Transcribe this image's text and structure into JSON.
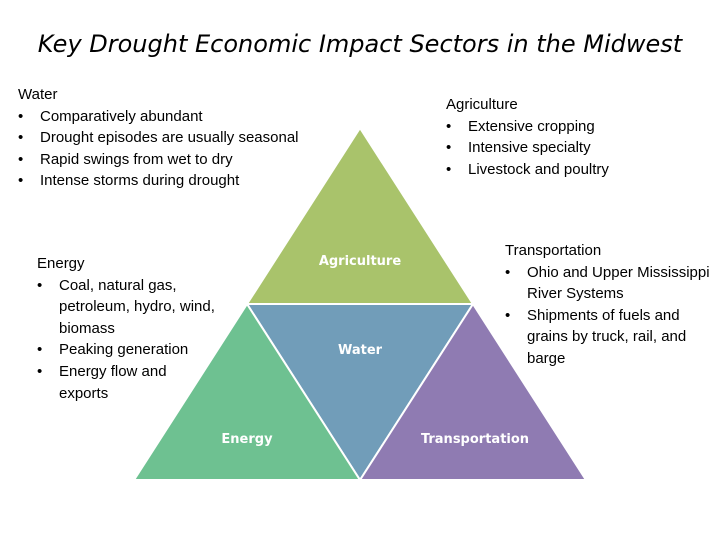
{
  "title": "Key Drought Economic Impact Sectors in the Midwest",
  "blocks": {
    "water": {
      "heading": "Water",
      "items": [
        "Comparatively abundant",
        "Drought episodes are usually seasonal",
        "Rapid swings from wet to dry",
        "Intense storms during drought"
      ]
    },
    "agriculture": {
      "heading": "Agriculture",
      "items": [
        "Extensive cropping",
        "Intensive specialty",
        "Livestock and poultry"
      ]
    },
    "energy": {
      "heading": "Energy",
      "items": [
        "Coal, natural gas, petroleum, hydro, wind, biomass",
        "Peaking generation",
        "Energy flow and exports"
      ]
    },
    "transportation": {
      "heading": "Transportation",
      "items": [
        "Ohio and Upper Mississippi River Systems",
        "Shipments of fuels and grains by truck, rail, and barge"
      ]
    }
  },
  "triangles": {
    "agriculture": {
      "label": "Agriculture",
      "color": "#a9c36b"
    },
    "water": {
      "label": "Water",
      "color": "#719db9"
    },
    "energy": {
      "label": "Energy",
      "color": "#6ec191"
    },
    "transportation": {
      "label": "Transportation",
      "color": "#8f7bb2"
    }
  }
}
